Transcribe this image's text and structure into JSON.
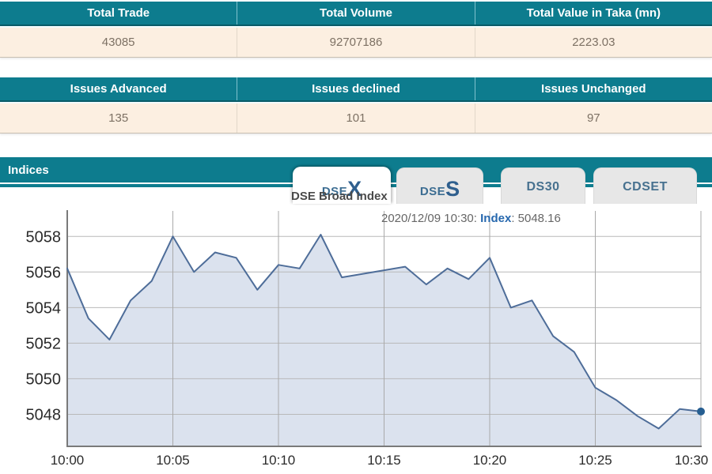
{
  "summary_tables": [
    {
      "headers": [
        "Total Trade",
        "Total Volume",
        "Total Value in Taka (mn)"
      ],
      "values": [
        "43085",
        "92707186",
        "2223.03"
      ]
    },
    {
      "headers": [
        "Issues Advanced",
        "Issues declined",
        "Issues Unchanged"
      ],
      "values": [
        "135",
        "101",
        "97"
      ]
    }
  ],
  "indices": {
    "section_title": "Indices",
    "tabs": [
      {
        "pre": "DSE",
        "accent": "X",
        "active": true
      },
      {
        "pre": "DSE",
        "accent": "S",
        "active": false
      },
      {
        "pre": "DS30",
        "accent": "",
        "active": false
      },
      {
        "pre": "CDSET",
        "accent": "",
        "active": false
      }
    ]
  },
  "chart_data": {
    "type": "area",
    "title": "DSE Broad Index",
    "series_name": "Index",
    "x": [
      "10:00",
      "10:01",
      "10:02",
      "10:03",
      "10:04",
      "10:05",
      "10:06",
      "10:07",
      "10:08",
      "10:09",
      "10:10",
      "10:11",
      "10:12",
      "10:13",
      "10:14",
      "10:15",
      "10:16",
      "10:17",
      "10:18",
      "10:19",
      "10:20",
      "10:21",
      "10:22",
      "10:23",
      "10:24",
      "10:25",
      "10:26",
      "10:27",
      "10:28",
      "10:29",
      "10:30"
    ],
    "values": [
      5056.2,
      5053.4,
      5052.2,
      5054.4,
      5055.5,
      5058.0,
      5056.0,
      5057.1,
      5056.8,
      5055.0,
      5056.4,
      5056.2,
      5058.1,
      5055.7,
      5055.9,
      5056.1,
      5056.3,
      5055.3,
      5056.2,
      5055.6,
      5056.8,
      5054.0,
      5054.4,
      5052.4,
      5051.5,
      5049.5,
      5048.8,
      5047.9,
      5047.2,
      5048.3,
      5048.16
    ],
    "xticks": [
      "10:00",
      "10:05",
      "10:10",
      "10:15",
      "10:20",
      "10:25",
      "10:30"
    ],
    "yticks": [
      5048,
      5050,
      5052,
      5054,
      5056,
      5058
    ],
    "ylim": [
      5046.2,
      5059.3
    ],
    "grid": true,
    "legend": false,
    "tooltip": {
      "prefix": "2020/12/09 10:30: ",
      "label": "Index",
      "suffix": ": 5048.16"
    },
    "last_point": {
      "time": "10:30",
      "value": 5048.16
    },
    "colors": {
      "line": "#4e6d99",
      "fill": "#dbe2ee",
      "marker": "#265e91",
      "grid_h": "#b9b9b9",
      "grid_v": "#a9a9a9",
      "axis": "#7a7a7a",
      "tick_text": "#2b2b2b"
    }
  }
}
